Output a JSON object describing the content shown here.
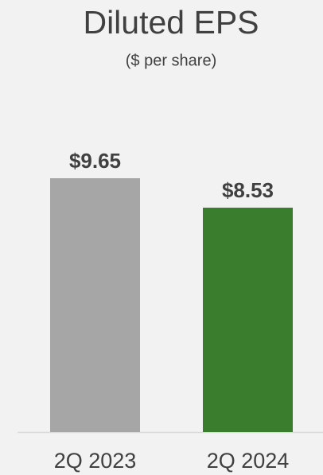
{
  "chart_data": {
    "type": "bar",
    "title": "Diluted EPS",
    "subtitle": "($ per share)",
    "categories": [
      "2Q 2023",
      "2Q 2024"
    ],
    "values": [
      9.65,
      8.53
    ],
    "value_labels": [
      "$9.65",
      "$8.53"
    ],
    "colors": [
      "#a6a6a6",
      "#3a7d2c"
    ]
  }
}
